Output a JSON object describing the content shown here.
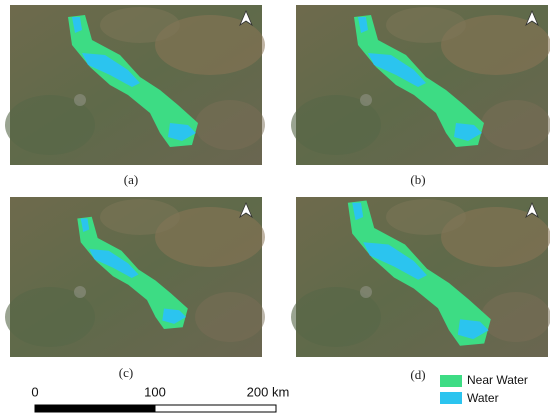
{
  "panels": [
    {
      "label": "(a)"
    },
    {
      "label": "(b)"
    },
    {
      "label": "(c)"
    },
    {
      "label": "(d)"
    }
  ],
  "scale_bar": {
    "labels": [
      "0",
      "100",
      "200 km"
    ]
  },
  "legend": [
    {
      "label": "Near Water",
      "color": "#3ddc84"
    },
    {
      "label": "Water",
      "color": "#2bc4ef"
    }
  ]
}
